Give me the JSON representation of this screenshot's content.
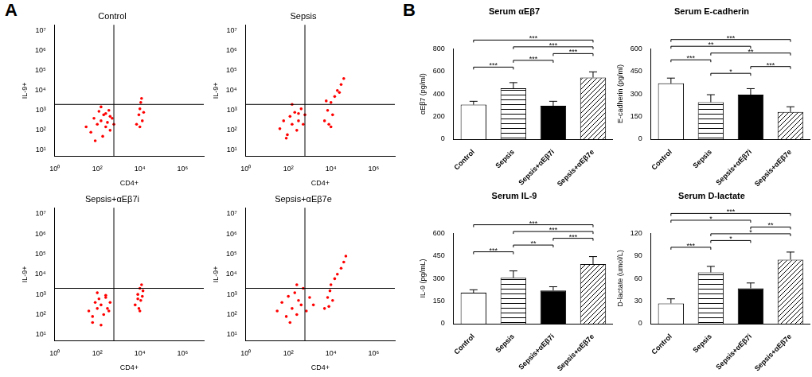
{
  "panel_labels": [
    "A",
    "B"
  ],
  "chart_data": [
    {
      "type": "scatter",
      "title": "Control",
      "x_label": "CD4+",
      "y_label": "IL-9+",
      "log": true,
      "grid": false,
      "color": "#ff0000",
      "marker": "circle",
      "xlim": [
        1,
        10000000
      ],
      "ylim": [
        5,
        20000000
      ],
      "xticks": [
        {
          "value": 1,
          "label": "10⁰"
        },
        {
          "value": 100,
          "label": "10²"
        },
        {
          "value": 10000,
          "label": "10⁴"
        },
        {
          "value": 1000000,
          "label": "10⁶"
        }
      ],
      "yticks": [
        {
          "value": 10,
          "label": "10¹"
        },
        {
          "value": 100,
          "label": "10²"
        },
        {
          "value": 1000,
          "label": "10³"
        },
        {
          "value": 10000,
          "label": "10⁴"
        },
        {
          "value": 100000,
          "label": "10⁵"
        },
        {
          "value": 1000000,
          "label": "10⁶"
        },
        {
          "value": 10000000,
          "label": "10⁷"
        }
      ],
      "gates": {
        "x": 600,
        "y": 2000
      },
      "x": [
        30,
        50,
        70,
        100,
        120,
        150,
        180,
        200,
        250,
        300,
        350,
        400,
        500,
        600,
        80,
        150,
        250,
        400,
        7000,
        9000,
        10000,
        11000,
        12000,
        13000,
        10000,
        15000
      ],
      "values": [
        150,
        80,
        400,
        200,
        900,
        300,
        50,
        600,
        150,
        250,
        1000,
        100,
        400,
        200,
        30,
        1500,
        700,
        500,
        200,
        600,
        1200,
        2500,
        4000,
        300,
        150,
        800
      ]
    },
    {
      "type": "scatter",
      "title": "Sepsis",
      "x_label": "CD4+",
      "y_label": "IL-9+",
      "log": true,
      "grid": false,
      "color": "#ff0000",
      "marker": "circle",
      "xlim": [
        1,
        10000000
      ],
      "ylim": [
        5,
        20000000
      ],
      "xticks": [
        {
          "value": 1,
          "label": "10⁰"
        },
        {
          "value": 100,
          "label": "10²"
        },
        {
          "value": 10000,
          "label": "10⁴"
        },
        {
          "value": 1000000,
          "label": "10⁶"
        }
      ],
      "yticks": [
        {
          "value": 10,
          "label": "10¹"
        },
        {
          "value": 100,
          "label": "10²"
        },
        {
          "value": 1000,
          "label": "10³"
        },
        {
          "value": 10000,
          "label": "10⁴"
        },
        {
          "value": 100000,
          "label": "10⁵"
        },
        {
          "value": 1000000,
          "label": "10⁶"
        },
        {
          "value": 10000000,
          "label": "10⁷"
        }
      ],
      "gates": {
        "x": 600,
        "y": 2000
      },
      "x": [
        40,
        60,
        90,
        120,
        150,
        200,
        250,
        300,
        400,
        500,
        600,
        80,
        150,
        300,
        5000,
        7000,
        8000,
        10000,
        12000,
        15000,
        20000,
        25000,
        30000,
        40000,
        10000,
        6000
      ],
      "values": [
        120,
        300,
        60,
        500,
        200,
        800,
        100,
        300,
        1200,
        200,
        600,
        40,
        2000,
        700,
        300,
        1000,
        200,
        2500,
        600,
        5000,
        10000,
        8000,
        20000,
        40000,
        150,
        3000
      ]
    },
    {
      "type": "scatter",
      "title": "Sepsis+αEβ7i",
      "x_label": "CD4+",
      "y_label": "IL-9+",
      "log": true,
      "grid": false,
      "color": "#ff0000",
      "marker": "circle",
      "xlim": [
        1,
        10000000
      ],
      "ylim": [
        5,
        20000000
      ],
      "xticks": [
        {
          "value": 1,
          "label": "10⁰"
        },
        {
          "value": 100,
          "label": "10²"
        },
        {
          "value": 10000,
          "label": "10⁴"
        },
        {
          "value": 1000000,
          "label": "10⁶"
        }
      ],
      "yticks": [
        {
          "value": 10,
          "label": "10¹"
        },
        {
          "value": 100,
          "label": "10²"
        },
        {
          "value": 1000,
          "label": "10³"
        },
        {
          "value": 10000,
          "label": "10⁴"
        },
        {
          "value": 100000,
          "label": "10⁵"
        },
        {
          "value": 1000000,
          "label": "10⁶"
        },
        {
          "value": 10000000,
          "label": "10⁷"
        }
      ],
      "gates": {
        "x": 600,
        "y": 2000
      },
      "x": [
        40,
        60,
        80,
        100,
        120,
        150,
        200,
        250,
        300,
        400,
        60,
        100,
        150,
        250,
        350,
        6000,
        8000,
        9000,
        10000,
        11000,
        12000,
        14000,
        10000,
        8000,
        13000
      ],
      "values": [
        150,
        80,
        400,
        200,
        600,
        300,
        100,
        900,
        200,
        400,
        40,
        1200,
        30,
        700,
        150,
        300,
        1000,
        200,
        2000,
        500,
        3000,
        1500,
        150,
        600,
        800
      ]
    },
    {
      "type": "scatter",
      "title": "Sepsis+αEβ7e",
      "x_label": "CD4+",
      "y_label": "IL-9+",
      "log": true,
      "grid": false,
      "color": "#ff0000",
      "marker": "circle",
      "xlim": [
        1,
        10000000
      ],
      "ylim": [
        5,
        20000000
      ],
      "xticks": [
        {
          "value": 1,
          "label": "10⁰"
        },
        {
          "value": 100,
          "label": "10²"
        },
        {
          "value": 10000,
          "label": "10⁴"
        },
        {
          "value": 1000000,
          "label": "10⁶"
        }
      ],
      "yticks": [
        {
          "value": 10,
          "label": "10¹"
        },
        {
          "value": 100,
          "label": "10²"
        },
        {
          "value": 1000,
          "label": "10³"
        },
        {
          "value": 10000,
          "label": "10⁴"
        },
        {
          "value": 100000,
          "label": "10⁵"
        },
        {
          "value": 1000000,
          "label": "10⁶"
        },
        {
          "value": 10000000,
          "label": "10⁷"
        }
      ],
      "gates": {
        "x": 600,
        "y": 2000
      },
      "x": [
        30,
        50,
        80,
        100,
        150,
        200,
        250,
        300,
        400,
        500,
        700,
        1000,
        1500,
        120,
        250,
        5000,
        7000,
        9000,
        10000,
        12000,
        15000,
        20000,
        30000,
        40000,
        50000,
        8000
      ],
      "values": [
        150,
        400,
        80,
        800,
        200,
        1200,
        100,
        500,
        300,
        2000,
        150,
        700,
        300,
        40,
        3000,
        200,
        700,
        1500,
        3000,
        500,
        6000,
        10000,
        20000,
        40000,
        80000,
        250
      ]
    },
    {
      "type": "bar",
      "title": "Serum αEβ7",
      "y_label": "αEβ7 (pg/ml)",
      "grid": false,
      "categories": [
        "Control",
        "Sepsis",
        "Sepsis+αEβ7i",
        "Sepsis+αEβ7e"
      ],
      "values": [
        305,
        450,
        295,
        545
      ],
      "errors": [
        30,
        50,
        40,
        50
      ],
      "colors": [
        "#ffffff",
        "#ffffff",
        "#000000",
        "#ffffff"
      ],
      "ylim": [
        0,
        800
      ],
      "yticks": [
        0,
        200,
        400,
        600,
        800
      ],
      "significance": [
        {
          "pair": [
            0,
            1
          ],
          "label": "***"
        },
        {
          "pair": [
            1,
            2
          ],
          "label": "***"
        },
        {
          "pair": [
            2,
            3
          ],
          "label": "***"
        },
        {
          "pair": [
            1,
            3
          ],
          "label": "***"
        },
        {
          "pair": [
            0,
            3
          ],
          "label": "***"
        }
      ]
    },
    {
      "type": "bar",
      "title": "Serum E-cadherin",
      "y_label": "E-cadherin (pg/ml)",
      "grid": false,
      "categories": [
        "Control",
        "Sepsis",
        "Sepsis+αEβ7i",
        "Sepsis+αEβ7e"
      ],
      "values": [
        370,
        245,
        295,
        180
      ],
      "errors": [
        35,
        50,
        40,
        35
      ],
      "colors": [
        "#ffffff",
        "#ffffff",
        "#000000",
        "#ffffff"
      ],
      "ylim": [
        0,
        600
      ],
      "yticks": [
        0,
        150,
        300,
        450,
        600
      ],
      "significance": [
        {
          "pair": [
            1,
            2
          ],
          "label": "*"
        },
        {
          "pair": [
            2,
            3
          ],
          "label": "***"
        },
        {
          "pair": [
            0,
            1
          ],
          "label": "***"
        },
        {
          "pair": [
            1,
            3
          ],
          "label": "**"
        },
        {
          "pair": [
            0,
            2
          ],
          "label": "**"
        },
        {
          "pair": [
            0,
            3
          ],
          "label": "***"
        }
      ]
    },
    {
      "type": "bar",
      "title": "Serum IL-9",
      "y_label": "IL-9 (pg/mL)",
      "grid": false,
      "categories": [
        "Control",
        "Sepsis",
        "Sepsis+αEβ7i",
        "Sepsis+αEβ7e"
      ],
      "values": [
        205,
        305,
        220,
        395
      ],
      "errors": [
        20,
        45,
        25,
        50
      ],
      "colors": [
        "#ffffff",
        "#ffffff",
        "#000000",
        "#ffffff"
      ],
      "ylim": [
        0,
        600
      ],
      "yticks": [
        0,
        150,
        300,
        450,
        600
      ],
      "significance": [
        {
          "pair": [
            0,
            1
          ],
          "label": "***"
        },
        {
          "pair": [
            1,
            2
          ],
          "label": "**"
        },
        {
          "pair": [
            2,
            3
          ],
          "label": "***"
        },
        {
          "pair": [
            1,
            3
          ],
          "label": "***"
        },
        {
          "pair": [
            0,
            3
          ],
          "label": "***"
        }
      ]
    },
    {
      "type": "bar",
      "title": "Serum D-lactate",
      "y_label": "D-lactate (umol/L)",
      "grid": false,
      "categories": [
        "Control",
        "Sepsis",
        "Sepsis+αEβ7i",
        "Sepsis+αEβ7e"
      ],
      "values": [
        27,
        68,
        47,
        85
      ],
      "errors": [
        6,
        8,
        7,
        10
      ],
      "colors": [
        "#ffffff",
        "#ffffff",
        "#000000",
        "#ffffff"
      ],
      "ylim": [
        0,
        120
      ],
      "yticks": [
        0,
        30,
        60,
        90,
        120
      ],
      "significance": [
        {
          "pair": [
            0,
            1
          ],
          "label": "***"
        },
        {
          "pair": [
            1,
            2
          ],
          "label": "*"
        },
        {
          "pair": [
            1,
            3
          ],
          "label": "*"
        },
        {
          "pair": [
            2,
            3
          ],
          "label": "**"
        },
        {
          "pair": [
            0,
            2
          ],
          "label": "*"
        },
        {
          "pair": [
            0,
            3
          ],
          "label": "***"
        }
      ]
    }
  ]
}
